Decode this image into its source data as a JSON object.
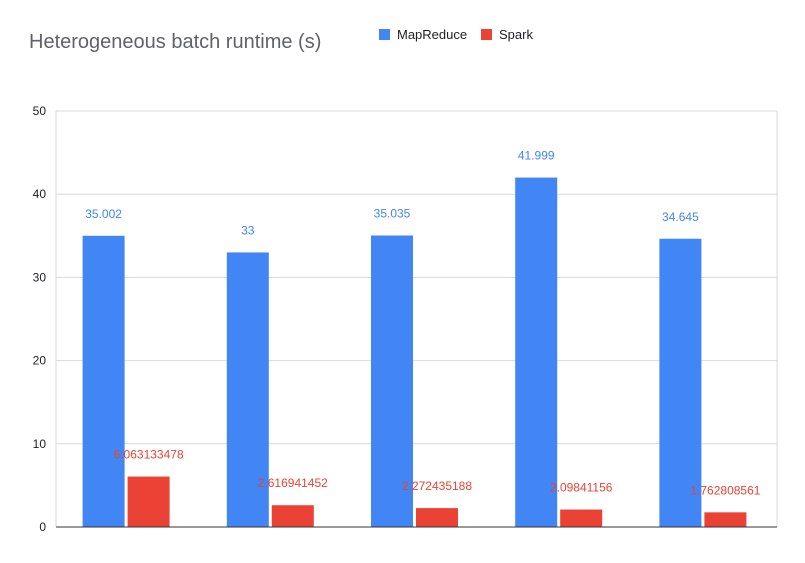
{
  "chart_data": {
    "type": "bar",
    "title": "Heterogeneous batch runtime (s)",
    "xlabel": "",
    "ylabel": "",
    "categories": [
      "",
      "",
      "",
      "",
      ""
    ],
    "ylim": [
      0,
      50
    ],
    "yticks": [
      0,
      10,
      20,
      30,
      40,
      50
    ],
    "grid": true,
    "legend": "top",
    "series": [
      {
        "name": "MapReduce",
        "color": "#4285f4",
        "values": [
          35.002,
          33,
          35.035,
          41.999,
          34.645
        ],
        "labels": [
          "35.002",
          "33",
          "35.035",
          "41.999",
          "34.645"
        ]
      },
      {
        "name": "Spark",
        "color": "#ea4335",
        "values": [
          6.063133478,
          2.616941452,
          2.272435188,
          2.09841156,
          1.762808561
        ],
        "labels": [
          "6.063133478",
          "2.616941452",
          "2.272435188",
          "2.09841156",
          "1.762808561"
        ]
      }
    ]
  }
}
